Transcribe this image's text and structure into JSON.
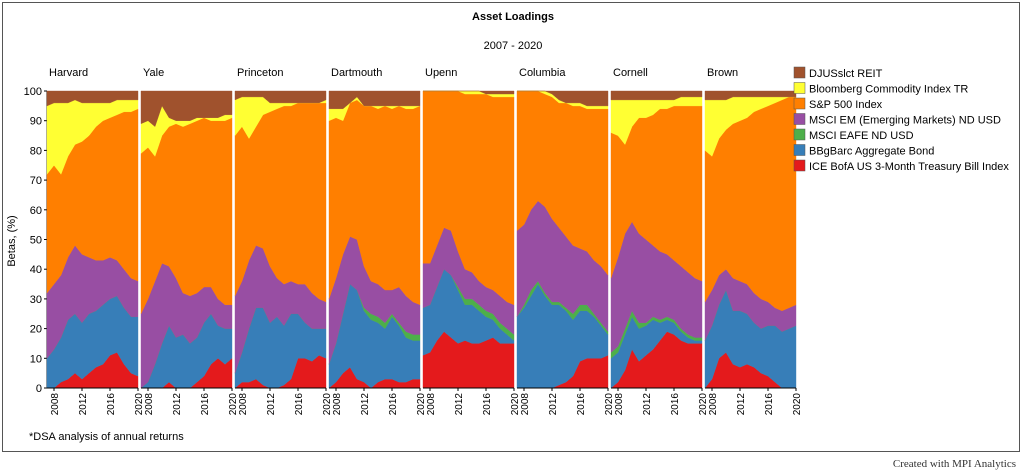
{
  "chart_data": {
    "type": "area",
    "title": "Asset Loadings",
    "subtitle": "2007 - 2020",
    "xlabel": "",
    "ylabel": "Betas, (%)",
    "ylim": [
      0,
      100
    ],
    "yticks": [
      0,
      10,
      20,
      30,
      40,
      50,
      60,
      70,
      80,
      90,
      100
    ],
    "xticks": [
      "2008",
      "2012",
      "2016",
      "2020"
    ],
    "note": "*DSA analysis of annual returns",
    "stacking_order": [
      "tbill",
      "agg",
      "eafe",
      "em",
      "sp500",
      "commodity",
      "reit"
    ],
    "legend_position": "right",
    "legend": [
      {
        "key": "reit",
        "label": "DJUSslct REIT",
        "color": "#a0522d"
      },
      {
        "key": "commodity",
        "label": "Bloomberg Commodity Index TR",
        "color": "#ffff33"
      },
      {
        "key": "sp500",
        "label": "S&P 500 Index",
        "color": "#ff7f00"
      },
      {
        "key": "em",
        "label": "MSCI EM (Emerging Markets) ND USD",
        "color": "#984ea3"
      },
      {
        "key": "eafe",
        "label": "MSCI EAFE ND USD",
        "color": "#4daf4a"
      },
      {
        "key": "agg",
        "label": "BBgBarc Aggregate Bond",
        "color": "#377eb8"
      },
      {
        "key": "tbill",
        "label": "ICE BofA US 3-Month Treasury Bill Index",
        "color": "#e41a1c"
      }
    ],
    "panels": [
      {
        "name": "Harvard",
        "x": [
          2007,
          2008,
          2009,
          2010,
          2011,
          2012,
          2013,
          2014,
          2015,
          2016,
          2017,
          2018,
          2019,
          2020
        ],
        "cumulative": {
          "tbill": [
            0,
            0,
            2,
            3,
            5,
            3,
            5,
            7,
            8,
            11,
            12,
            8,
            5,
            4
          ],
          "agg": [
            10,
            13,
            17,
            23,
            25,
            22,
            25,
            26,
            28,
            30,
            31,
            27,
            24,
            24
          ],
          "eafe": [
            10,
            13,
            17,
            23,
            25,
            22,
            25,
            26,
            28,
            30,
            31,
            27,
            24,
            24
          ],
          "em": [
            32,
            35,
            38,
            44,
            48,
            45,
            44,
            43,
            43,
            44,
            43,
            40,
            37,
            36
          ],
          "sp500": [
            72,
            75,
            72,
            78,
            82,
            83,
            85,
            88,
            90,
            91,
            92,
            93,
            93,
            94
          ],
          "commodity": [
            95,
            96,
            96,
            96,
            97,
            96,
            96,
            96,
            96,
            96,
            97,
            97,
            97,
            97
          ],
          "reit": [
            100,
            100,
            100,
            100,
            100,
            100,
            100,
            100,
            100,
            100,
            100,
            100,
            100,
            100
          ]
        }
      },
      {
        "name": "Yale",
        "x": [
          2007,
          2008,
          2009,
          2010,
          2011,
          2012,
          2013,
          2014,
          2015,
          2016,
          2017,
          2018,
          2019,
          2020
        ],
        "cumulative": {
          "tbill": [
            0,
            0,
            0,
            0,
            2,
            0,
            0,
            0,
            2,
            4,
            8,
            10,
            8,
            10
          ],
          "agg": [
            0,
            2,
            8,
            15,
            21,
            17,
            18,
            15,
            17,
            22,
            25,
            21,
            20,
            20
          ],
          "eafe": [
            0,
            2,
            8,
            15,
            21,
            17,
            18,
            15,
            17,
            22,
            25,
            21,
            20,
            20
          ],
          "em": [
            25,
            30,
            36,
            42,
            41,
            37,
            32,
            31,
            32,
            34,
            34,
            30,
            28,
            28
          ],
          "sp500": [
            79,
            81,
            78,
            85,
            88,
            89,
            88,
            89,
            90,
            91,
            90,
            90,
            90,
            91
          ],
          "commodity": [
            89,
            90,
            88,
            95,
            91,
            90,
            90,
            90,
            91,
            91,
            91,
            91,
            92,
            92
          ],
          "reit": [
            100,
            100,
            100,
            100,
            100,
            100,
            100,
            100,
            100,
            100,
            100,
            100,
            100,
            100
          ]
        }
      },
      {
        "name": "Princeton",
        "x": [
          2007,
          2008,
          2009,
          2010,
          2011,
          2012,
          2013,
          2014,
          2015,
          2016,
          2017,
          2018,
          2019,
          2020
        ],
        "cumulative": {
          "tbill": [
            0,
            2,
            2,
            3,
            1,
            0,
            0,
            1,
            3,
            10,
            10,
            9,
            11,
            10
          ],
          "agg": [
            5,
            12,
            20,
            27,
            27,
            22,
            24,
            21,
            25,
            25,
            22,
            20,
            20,
            20
          ],
          "eafe": [
            5,
            12,
            20,
            27,
            27,
            22,
            24,
            21,
            25,
            25,
            22,
            20,
            20,
            20
          ],
          "em": [
            31,
            36,
            43,
            48,
            47,
            41,
            37,
            35,
            36,
            35,
            35,
            32,
            30,
            29
          ],
          "sp500": [
            85,
            88,
            84,
            88,
            92,
            93,
            94,
            95,
            95,
            96,
            96,
            96,
            96,
            96
          ],
          "commodity": [
            97,
            98,
            98,
            98,
            98,
            96,
            96,
            96,
            96,
            96,
            96,
            96,
            96,
            97
          ],
          "reit": [
            100,
            100,
            100,
            100,
            100,
            100,
            100,
            100,
            100,
            100,
            100,
            100,
            100,
            100
          ]
        }
      },
      {
        "name": "Dartmouth",
        "x": [
          2007,
          2008,
          2009,
          2010,
          2011,
          2012,
          2013,
          2014,
          2015,
          2016,
          2017,
          2018,
          2019,
          2020
        ],
        "cumulative": {
          "tbill": [
            0,
            2,
            5,
            7,
            3,
            2,
            0,
            2,
            3,
            3,
            2,
            2,
            3,
            3
          ],
          "agg": [
            8,
            15,
            25,
            35,
            33,
            26,
            23,
            22,
            20,
            24,
            21,
            17,
            16,
            16
          ],
          "eafe": [
            8,
            15,
            25,
            35,
            33,
            27,
            25,
            24,
            22,
            25,
            22,
            19,
            18,
            18
          ],
          "em": [
            30,
            37,
            45,
            51,
            50,
            41,
            36,
            35,
            33,
            33,
            34,
            31,
            29,
            28
          ],
          "sp500": [
            90,
            91,
            90,
            96,
            97,
            95,
            95,
            94,
            95,
            94,
            95,
            94,
            94,
            95
          ],
          "commodity": [
            94,
            94,
            94,
            96,
            98,
            95,
            95,
            95,
            95,
            95,
            95,
            95,
            95,
            95
          ],
          "reit": [
            100,
            100,
            100,
            100,
            100,
            100,
            100,
            100,
            100,
            100,
            100,
            100,
            100,
            100
          ]
        }
      },
      {
        "name": "Upenn",
        "x": [
          2007,
          2008,
          2009,
          2010,
          2011,
          2012,
          2013,
          2014,
          2015,
          2016,
          2017,
          2018,
          2019,
          2020
        ],
        "cumulative": {
          "tbill": [
            11,
            12,
            16,
            19,
            17,
            15,
            16,
            15,
            15,
            16,
            17,
            15,
            15,
            15
          ],
          "agg": [
            27,
            28,
            34,
            40,
            38,
            33,
            28,
            28,
            26,
            24,
            23,
            20,
            18,
            16
          ],
          "eafe": [
            27,
            28,
            34,
            40,
            38,
            34,
            30,
            30,
            28,
            26,
            25,
            22,
            20,
            18
          ],
          "em": [
            42,
            42,
            48,
            54,
            53,
            46,
            40,
            39,
            36,
            34,
            33,
            31,
            29,
            28
          ],
          "sp500": [
            100,
            100,
            100,
            100,
            100,
            100,
            99,
            99,
            99,
            99,
            98,
            98,
            98,
            98
          ],
          "commodity": [
            100,
            100,
            100,
            100,
            100,
            100,
            100,
            100,
            100,
            99,
            99,
            99,
            99,
            99
          ],
          "reit": [
            100,
            100,
            100,
            100,
            100,
            100,
            100,
            100,
            100,
            100,
            100,
            100,
            100,
            100
          ]
        }
      },
      {
        "name": "Columbia",
        "x": [
          2007,
          2008,
          2009,
          2010,
          2011,
          2012,
          2013,
          2014,
          2015,
          2016,
          2017,
          2018,
          2019,
          2020
        ],
        "cumulative": {
          "tbill": [
            0,
            0,
            0,
            0,
            0,
            0,
            1,
            2,
            4,
            9,
            10,
            10,
            10,
            11
          ],
          "agg": [
            24,
            27,
            31,
            35,
            31,
            28,
            28,
            26,
            23,
            26,
            26,
            24,
            21,
            18
          ],
          "eafe": [
            24,
            28,
            33,
            36,
            32,
            29,
            29,
            27,
            25,
            28,
            28,
            25,
            22,
            19
          ],
          "em": [
            53,
            55,
            60,
            63,
            61,
            57,
            54,
            51,
            48,
            47,
            46,
            43,
            41,
            38
          ],
          "sp500": [
            100,
            100,
            100,
            100,
            99,
            98,
            96,
            96,
            95,
            95,
            94,
            94,
            94,
            94
          ],
          "commodity": [
            100,
            100,
            100,
            100,
            100,
            99,
            97,
            96,
            96,
            96,
            95,
            95,
            95,
            95
          ],
          "reit": [
            100,
            100,
            100,
            100,
            100,
            100,
            100,
            100,
            100,
            100,
            100,
            100,
            100,
            100
          ]
        }
      },
      {
        "name": "Cornell",
        "x": [
          2007,
          2008,
          2009,
          2010,
          2011,
          2012,
          2013,
          2014,
          2015,
          2016,
          2017,
          2018,
          2019,
          2020
        ],
        "cumulative": {
          "tbill": [
            0,
            2,
            6,
            13,
            9,
            11,
            13,
            16,
            19,
            18,
            16,
            15,
            15,
            15
          ],
          "agg": [
            10,
            12,
            18,
            24,
            20,
            21,
            23,
            22,
            23,
            22,
            19,
            17,
            16,
            16
          ],
          "eafe": [
            12,
            14,
            20,
            26,
            22,
            22,
            24,
            23,
            24,
            23,
            20,
            18,
            17,
            17
          ],
          "em": [
            37,
            44,
            52,
            56,
            52,
            50,
            48,
            46,
            45,
            43,
            41,
            39,
            37,
            36
          ],
          "sp500": [
            86,
            85,
            82,
            88,
            91,
            91,
            92,
            94,
            94,
            95,
            95,
            95,
            95,
            95
          ],
          "commodity": [
            97,
            97,
            97,
            97,
            97,
            97,
            97,
            97,
            97,
            97,
            98,
            98,
            98,
            98
          ],
          "reit": [
            100,
            100,
            100,
            100,
            100,
            100,
            100,
            100,
            100,
            100,
            100,
            100,
            100,
            100
          ]
        }
      },
      {
        "name": "Brown",
        "x": [
          2007,
          2008,
          2009,
          2010,
          2011,
          2012,
          2013,
          2014,
          2015,
          2016,
          2017,
          2018,
          2019,
          2020
        ],
        "cumulative": {
          "tbill": [
            0,
            3,
            10,
            12,
            8,
            7,
            8,
            7,
            5,
            4,
            2,
            0,
            0,
            0
          ],
          "agg": [
            16,
            21,
            28,
            33,
            26,
            26,
            25,
            22,
            20,
            21,
            21,
            19,
            20,
            21
          ],
          "eafe": [
            16,
            21,
            28,
            33,
            26,
            26,
            25,
            22,
            20,
            21,
            21,
            19,
            20,
            21
          ],
          "em": [
            29,
            33,
            38,
            40,
            37,
            36,
            35,
            32,
            30,
            29,
            27,
            26,
            27,
            28
          ],
          "sp500": [
            80,
            78,
            84,
            87,
            89,
            90,
            91,
            93,
            94,
            95,
            96,
            97,
            98,
            98
          ],
          "commodity": [
            97,
            97,
            97,
            97,
            98,
            98,
            98,
            98,
            98,
            98,
            98,
            98,
            98,
            98
          ],
          "reit": [
            100,
            100,
            100,
            100,
            100,
            100,
            100,
            100,
            100,
            100,
            100,
            100,
            100,
            100
          ]
        }
      }
    ]
  },
  "footer": "Created with MPI Analytics"
}
